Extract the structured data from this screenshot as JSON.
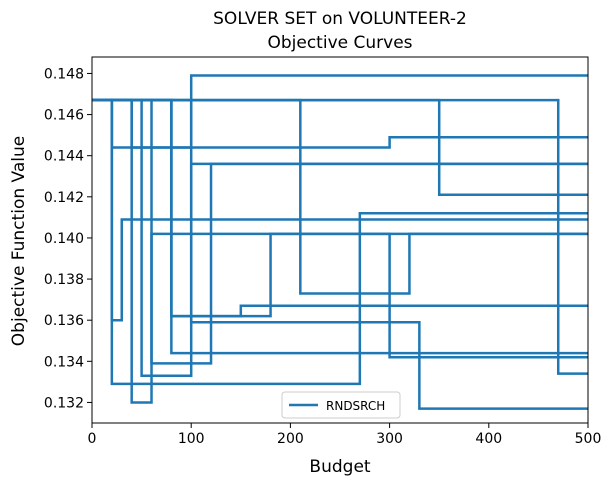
{
  "chart_data": {
    "type": "line",
    "title": "SOLVER SET on VOLUNTEER-2",
    "subtitle": "Objective Curves",
    "xlabel": "Budget",
    "ylabel": "Objective Function Value",
    "xlim": [
      0,
      500
    ],
    "ylim": [
      0.131,
      0.1488
    ],
    "x_ticks": [
      "0",
      "100",
      "200",
      "300",
      "400",
      "500"
    ],
    "y_ticks": [
      "0.132",
      "0.134",
      "0.136",
      "0.138",
      "0.140",
      "0.142",
      "0.144",
      "0.146",
      "0.148"
    ],
    "grid": false,
    "legend_position": "bottom-center",
    "color": "#1f77b4",
    "series": [
      {
        "name": "RNDSRCH",
        "x": [
          0,
          20,
          20,
          30,
          30,
          500
        ],
        "y": [
          0.1467,
          0.1467,
          0.136,
          0.136,
          0.1409,
          0.1409
        ]
      },
      {
        "x": [
          0,
          20,
          20,
          100,
          100,
          500
        ],
        "y": [
          0.1467,
          0.1467,
          0.1444,
          0.1444,
          0.1479,
          0.1479
        ]
      },
      {
        "x": [
          0,
          20,
          20,
          270,
          270,
          500
        ],
        "y": [
          0.1467,
          0.1467,
          0.1329,
          0.1329,
          0.1412,
          0.1412
        ]
      },
      {
        "x": [
          0,
          40,
          40,
          60,
          60,
          500
        ],
        "y": [
          0.1467,
          0.1467,
          0.132,
          0.132,
          0.1402,
          0.1402
        ]
      },
      {
        "x": [
          0,
          40,
          40,
          300,
          300,
          500
        ],
        "y": [
          0.1467,
          0.1467,
          0.1444,
          0.1444,
          0.1449,
          0.1449
        ]
      },
      {
        "x": [
          0,
          50,
          50,
          100,
          100,
          500
        ],
        "y": [
          0.1467,
          0.1467,
          0.1333,
          0.1333,
          0.1436,
          0.1436
        ]
      },
      {
        "x": [
          0,
          60,
          60,
          120,
          120,
          500
        ],
        "y": [
          0.1467,
          0.1467,
          0.1339,
          0.1339,
          0.1436,
          0.1436
        ]
      },
      {
        "x": [
          0,
          80,
          80,
          150,
          150,
          500
        ],
        "y": [
          0.1467,
          0.1467,
          0.1362,
          0.1362,
          0.1367,
          0.1367
        ]
      },
      {
        "x": [
          0,
          80,
          80,
          180,
          180,
          300,
          300,
          500
        ],
        "y": [
          0.1467,
          0.1467,
          0.1362,
          0.1362,
          0.1402,
          0.1402,
          0.1342,
          0.1342
        ]
      },
      {
        "x": [
          0,
          80,
          80,
          500
        ],
        "y": [
          0.1467,
          0.1467,
          0.1344,
          0.1344
        ]
      },
      {
        "x": [
          0,
          100,
          100,
          330,
          330,
          500
        ],
        "y": [
          0.1467,
          0.1467,
          0.1359,
          0.1359,
          0.1317,
          0.1317
        ]
      },
      {
        "x": [
          0,
          210,
          210,
          320,
          320,
          500
        ],
        "y": [
          0.1467,
          0.1467,
          0.1373,
          0.1373,
          0.1402,
          0.1402
        ]
      },
      {
        "x": [
          0,
          350,
          350,
          500
        ],
        "y": [
          0.1467,
          0.1467,
          0.1421,
          0.1421
        ]
      },
      {
        "x": [
          0,
          470,
          470,
          500
        ],
        "y": [
          0.1467,
          0.1467,
          0.1334,
          0.1334
        ]
      }
    ]
  }
}
